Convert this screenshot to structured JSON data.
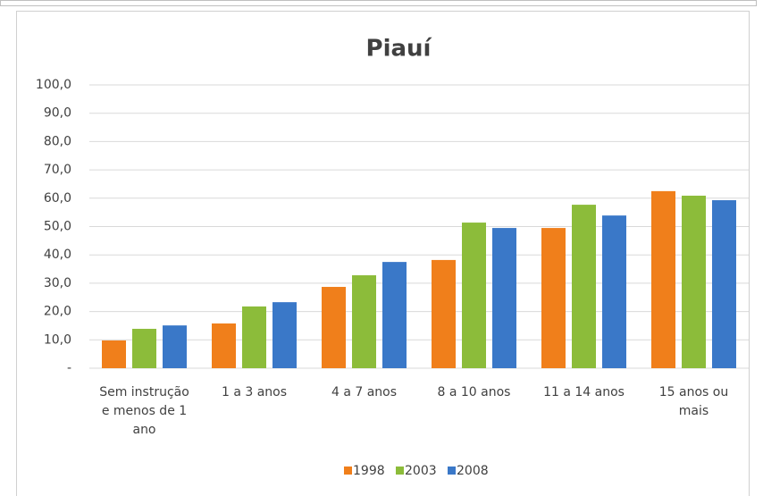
{
  "chart_data": {
    "type": "bar",
    "title": "Piauí",
    "categories": [
      "Sem instrução e menos de 1 ano",
      "1 a 3 anos",
      "4 a 7 anos",
      "8 a 10 anos",
      "11 a 14 anos",
      "15 anos ou mais"
    ],
    "series": [
      {
        "name": "1998",
        "color": "#f07f1b",
        "values": [
          9.8,
          15.8,
          28.7,
          38.2,
          49.5,
          62.5
        ]
      },
      {
        "name": "2003",
        "color": "#8cbc3a",
        "values": [
          13.9,
          21.8,
          32.8,
          51.4,
          57.7,
          60.9
        ]
      },
      {
        "name": "2008",
        "color": "#3a78c8",
        "values": [
          15.1,
          23.3,
          37.5,
          49.5,
          53.9,
          59.3
        ]
      }
    ],
    "ylim": [
      0,
      100
    ],
    "yticks": [
      {
        "value": 0,
        "label": "-"
      },
      {
        "value": 10,
        "label": "10,0"
      },
      {
        "value": 20,
        "label": "20,0"
      },
      {
        "value": 30,
        "label": "30,0"
      },
      {
        "value": 40,
        "label": "40,0"
      },
      {
        "value": 50,
        "label": "50,0"
      },
      {
        "value": 60,
        "label": "60,0"
      },
      {
        "value": 70,
        "label": "70,0"
      },
      {
        "value": 80,
        "label": "80,0"
      },
      {
        "value": 90,
        "label": "90,0"
      },
      {
        "value": 100,
        "label": "100,0"
      }
    ],
    "grid": true,
    "legend": "bottom"
  }
}
